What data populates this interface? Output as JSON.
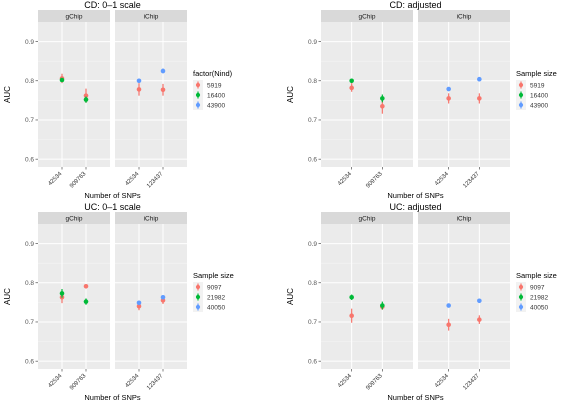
{
  "chart_data": [
    {
      "type": "scatter",
      "title": "CD: 0–1 scale",
      "xlabel": "Number of SNPs",
      "ylabel": "AUC",
      "ylim": [
        0.58,
        0.95
      ],
      "yticks": [
        "0.6",
        "0.7",
        "0.8",
        "0.9"
      ],
      "facets": [
        {
          "name": "gChip",
          "x": [
            "42534",
            "909763"
          ]
        },
        {
          "name": "iChip",
          "x": [
            "42534",
            "123437"
          ]
        }
      ],
      "legend_title": "factor(Nind)",
      "legend_position": "right",
      "series": [
        {
          "name": "5919",
          "color": "#F8766D",
          "points": [
            {
              "facet": "gChip",
              "x": "42534",
              "y": 0.806,
              "ylo": 0.794,
              "yhi": 0.818
            },
            {
              "facet": "gChip",
              "x": "909763",
              "y": 0.762,
              "ylo": 0.744,
              "yhi": 0.78
            },
            {
              "facet": "iChip",
              "x": "42534",
              "y": 0.778,
              "ylo": 0.762,
              "yhi": 0.794
            },
            {
              "facet": "iChip",
              "x": "123437",
              "y": 0.777,
              "ylo": 0.762,
              "yhi": 0.792
            }
          ]
        },
        {
          "name": "16400",
          "color": "#00BA38",
          "points": [
            {
              "facet": "gChip",
              "x": "42534",
              "y": 0.802,
              "ylo": 0.797,
              "yhi": 0.807
            },
            {
              "facet": "gChip",
              "x": "909763",
              "y": 0.752,
              "ylo": 0.744,
              "yhi": 0.76
            }
          ]
        },
        {
          "name": "43900",
          "color": "#619CFF",
          "points": [
            {
              "facet": "iChip",
              "x": "42534",
              "y": 0.8,
              "ylo": 0.796,
              "yhi": 0.804
            },
            {
              "facet": "iChip",
              "x": "123437",
              "y": 0.825,
              "ylo": 0.819,
              "yhi": 0.831
            }
          ]
        }
      ]
    },
    {
      "type": "scatter",
      "title": "CD: adjusted",
      "xlabel": "Number of SNPs",
      "ylabel": "AUC",
      "ylim": [
        0.58,
        0.95
      ],
      "yticks": [
        "0.6",
        "0.7",
        "0.8",
        "0.9"
      ],
      "facets": [
        {
          "name": "gChip",
          "x": [
            "42534",
            "909763"
          ]
        },
        {
          "name": "iChip",
          "x": [
            "42534",
            "123437"
          ]
        }
      ],
      "legend_title": "Sample size",
      "legend_position": "right",
      "series": [
        {
          "name": "5919",
          "color": "#F8766D",
          "points": [
            {
              "facet": "gChip",
              "x": "42534",
              "y": 0.782,
              "ylo": 0.772,
              "yhi": 0.794
            },
            {
              "facet": "gChip",
              "x": "909763",
              "y": 0.735,
              "ylo": 0.716,
              "yhi": 0.76
            },
            {
              "facet": "iChip",
              "x": "42534",
              "y": 0.755,
              "ylo": 0.742,
              "yhi": 0.768
            },
            {
              "facet": "iChip",
              "x": "123437",
              "y": 0.755,
              "ylo": 0.742,
              "yhi": 0.768
            }
          ]
        },
        {
          "name": "16400",
          "color": "#00BA38",
          "points": [
            {
              "facet": "gChip",
              "x": "42534",
              "y": 0.8,
              "ylo": 0.795,
              "yhi": 0.805
            },
            {
              "facet": "gChip",
              "x": "909763",
              "y": 0.755,
              "ylo": 0.745,
              "yhi": 0.765
            }
          ]
        },
        {
          "name": "43900",
          "color": "#619CFF",
          "points": [
            {
              "facet": "iChip",
              "x": "42534",
              "y": 0.779,
              "ylo": 0.775,
              "yhi": 0.783
            },
            {
              "facet": "iChip",
              "x": "123437",
              "y": 0.804,
              "ylo": 0.799,
              "yhi": 0.809
            }
          ]
        }
      ]
    },
    {
      "type": "scatter",
      "title": "UC: 0–1 scale",
      "xlabel": "Number of SNPs",
      "ylabel": "AUC",
      "ylim": [
        0.58,
        0.95
      ],
      "yticks": [
        "0.6",
        "0.7",
        "0.8",
        "0.9"
      ],
      "facets": [
        {
          "name": "gChip",
          "x": [
            "42534",
            "909763"
          ]
        },
        {
          "name": "iChip",
          "x": [
            "42534",
            "123437"
          ]
        }
      ],
      "legend_title": "Sample size",
      "legend_position": "right",
      "series": [
        {
          "name": "9097",
          "color": "#F8766D",
          "points": [
            {
              "facet": "gChip",
              "x": "42534",
              "y": 0.763,
              "ylo": 0.748,
              "yhi": 0.778
            },
            {
              "facet": "gChip",
              "x": "909763",
              "y": 0.791,
              "ylo": 0.787,
              "yhi": 0.795
            },
            {
              "facet": "iChip",
              "x": "42534",
              "y": 0.74,
              "ylo": 0.73,
              "yhi": 0.75
            },
            {
              "facet": "iChip",
              "x": "123437",
              "y": 0.755,
              "ylo": 0.746,
              "yhi": 0.764
            }
          ]
        },
        {
          "name": "21982",
          "color": "#00BA38",
          "points": [
            {
              "facet": "gChip",
              "x": "42534",
              "y": 0.773,
              "ylo": 0.762,
              "yhi": 0.784
            },
            {
              "facet": "gChip",
              "x": "909763",
              "y": 0.752,
              "ylo": 0.744,
              "yhi": 0.76
            }
          ]
        },
        {
          "name": "40050",
          "color": "#619CFF",
          "points": [
            {
              "facet": "iChip",
              "x": "42534",
              "y": 0.749,
              "ylo": 0.746,
              "yhi": 0.752
            },
            {
              "facet": "iChip",
              "x": "123437",
              "y": 0.763,
              "ylo": 0.76,
              "yhi": 0.766
            }
          ]
        }
      ]
    },
    {
      "type": "scatter",
      "title": "UC: adjusted",
      "xlabel": "Number of SNPs",
      "ylabel": "AUC",
      "ylim": [
        0.58,
        0.95
      ],
      "yticks": [
        "0.6",
        "0.7",
        "0.8",
        "0.9"
      ],
      "facets": [
        {
          "name": "gChip",
          "x": [
            "42534",
            "909763"
          ]
        },
        {
          "name": "iChip",
          "x": [
            "42534",
            "123437"
          ]
        }
      ],
      "legend_title": "Sample size",
      "legend_position": "right",
      "series": [
        {
          "name": "9097",
          "color": "#F8766D",
          "points": [
            {
              "facet": "gChip",
              "x": "42534",
              "y": 0.716,
              "ylo": 0.698,
              "yhi": 0.734
            },
            {
              "facet": "gChip",
              "x": "909763",
              "y": 0.739,
              "ylo": 0.731,
              "yhi": 0.747
            },
            {
              "facet": "iChip",
              "x": "42534",
              "y": 0.693,
              "ylo": 0.678,
              "yhi": 0.708
            },
            {
              "facet": "iChip",
              "x": "123437",
              "y": 0.706,
              "ylo": 0.695,
              "yhi": 0.717
            }
          ]
        },
        {
          "name": "21982",
          "color": "#00BA38",
          "points": [
            {
              "facet": "gChip",
              "x": "42534",
              "y": 0.763,
              "ylo": 0.756,
              "yhi": 0.77
            },
            {
              "facet": "gChip",
              "x": "909763",
              "y": 0.742,
              "ylo": 0.732,
              "yhi": 0.752
            }
          ]
        },
        {
          "name": "40050",
          "color": "#619CFF",
          "points": [
            {
              "facet": "iChip",
              "x": "42534",
              "y": 0.742,
              "ylo": 0.738,
              "yhi": 0.746
            },
            {
              "facet": "iChip",
              "x": "123437",
              "y": 0.754,
              "ylo": 0.75,
              "yhi": 0.758
            }
          ]
        }
      ]
    }
  ]
}
